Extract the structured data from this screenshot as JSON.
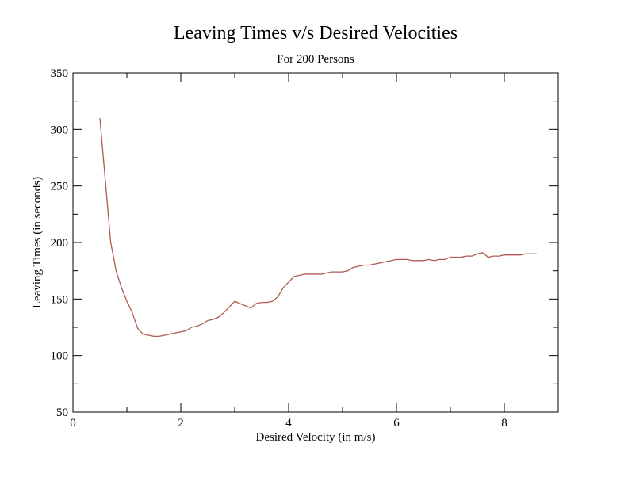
{
  "chart_data": {
    "type": "line",
    "title": "Leaving Times v/s Desired Velocities",
    "subtitle": "For 200 Persons",
    "xlabel": "Desired Velocity (in m/s)",
    "ylabel": "Leaving Times (in seconds)",
    "xlim": [
      0,
      9
    ],
    "ylim": [
      50,
      350
    ],
    "xticks": [
      0,
      2,
      4,
      6,
      8
    ],
    "yticks": [
      50,
      100,
      150,
      200,
      250,
      300,
      350
    ],
    "grid": false,
    "series": [
      {
        "color": "#b05a50",
        "x": [
          0.5,
          0.6,
          0.7,
          0.8,
          0.9,
          1.0,
          1.1,
          1.2,
          1.3,
          1.4,
          1.5,
          1.6,
          1.7,
          1.8,
          1.9,
          2.0,
          2.1,
          2.2,
          2.3,
          2.4,
          2.5,
          2.6,
          2.7,
          2.8,
          2.9,
          3.0,
          3.1,
          3.2,
          3.3,
          3.4,
          3.5,
          3.6,
          3.7,
          3.8,
          3.9,
          4.0,
          4.1,
          4.2,
          4.3,
          4.4,
          4.5,
          4.6,
          4.7,
          4.8,
          4.9,
          5.0,
          5.1,
          5.2,
          5.3,
          5.4,
          5.5,
          5.6,
          5.7,
          5.8,
          5.9,
          6.0,
          6.1,
          6.2,
          6.3,
          6.4,
          6.5,
          6.6,
          6.7,
          6.8,
          6.9,
          7.0,
          7.1,
          7.2,
          7.3,
          7.4,
          7.5,
          7.6,
          7.7,
          7.8,
          7.9,
          8.0,
          8.1,
          8.2,
          8.3,
          8.4,
          8.5,
          8.6
        ],
        "y": [
          310,
          255,
          200,
          175,
          160,
          148,
          138,
          124,
          119,
          118,
          117,
          117,
          118,
          119,
          120,
          121,
          122,
          125,
          126,
          128,
          131,
          132,
          134,
          138,
          143,
          148,
          146,
          144,
          142,
          146,
          147,
          147,
          148,
          152,
          160,
          165,
          170,
          171,
          172,
          172,
          172,
          172,
          173,
          174,
          174,
          174,
          175,
          178,
          179,
          180,
          180,
          181,
          182,
          183,
          184,
          185,
          185,
          185,
          184,
          184,
          184,
          185,
          184,
          185,
          185,
          187,
          187,
          187,
          188,
          188,
          190,
          191,
          187,
          188,
          188,
          189,
          189,
          189,
          189,
          190,
          190,
          190
        ]
      }
    ]
  }
}
